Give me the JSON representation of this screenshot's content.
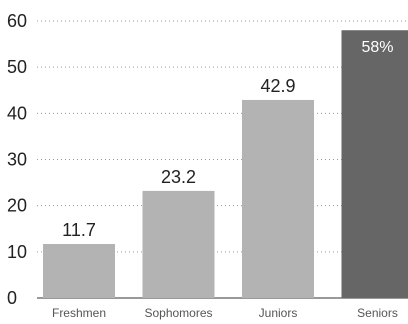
{
  "chart_data": {
    "type": "bar",
    "categories": [
      "Freshmen",
      "Sophomores",
      "Juniors",
      "Seniors"
    ],
    "values": [
      11.7,
      23.2,
      42.9,
      58
    ],
    "data_labels": [
      "11.7",
      "23.2",
      "42.9",
      "58%"
    ],
    "label_inside": [
      false,
      false,
      false,
      true
    ],
    "colors": [
      "#b3b3b3",
      "#b3b3b3",
      "#b3b3b3",
      "#666666"
    ],
    "ylim": [
      0,
      60
    ],
    "yticks": [
      0,
      10,
      20,
      30,
      40,
      50,
      60
    ],
    "grid": true,
    "grid_style": "dotted",
    "title": "",
    "xlabel": "",
    "ylabel": ""
  }
}
